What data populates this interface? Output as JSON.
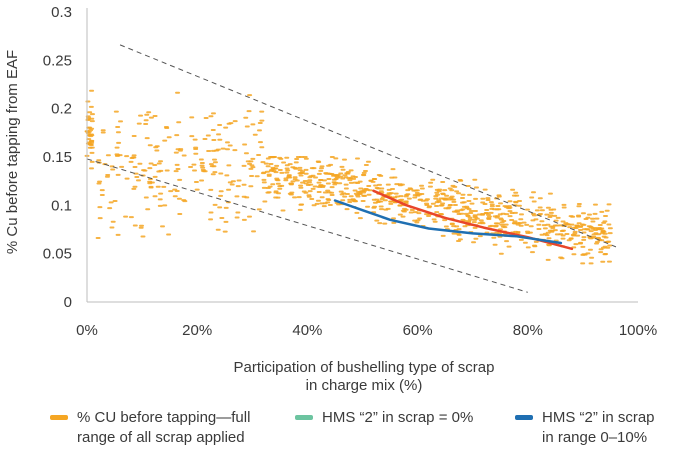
{
  "chart_data": {
    "type": "scatter",
    "title": "",
    "xlabel": "Participation of bushelling type of scrap",
    "xlabel_line2": "in charge mix (%)",
    "ylabel": "% Cu before tapping from EAF",
    "xlim": [
      0,
      100
    ],
    "ylim": [
      0,
      0.3
    ],
    "x_ticks": [
      0,
      20,
      40,
      60,
      80,
      100
    ],
    "x_tick_labels": [
      "0%",
      "20%",
      "40%",
      "60%",
      "80%",
      "100%"
    ],
    "y_ticks": [
      0,
      0.05,
      0.1,
      0.15,
      0.2,
      0.25,
      0.3
    ],
    "y_tick_labels": [
      "0",
      "0.05",
      "0.1",
      "0.15",
      "0.2",
      "0.25",
      "0.3"
    ],
    "grid": false,
    "legend_position": "bottom",
    "series": [
      {
        "name": "% CU before tapping—full range of all scrap applied",
        "kind": "scatter",
        "color": "#f5a623",
        "clusters": [
          {
            "x_range": [
              0,
              1
            ],
            "y_range": [
              0.12,
              0.23
            ],
            "count": 40
          },
          {
            "x_range": [
              2,
              32
            ],
            "y_range": [
              0.06,
              0.22
            ],
            "count": 230
          },
          {
            "x_range": [
              32,
              95
            ],
            "y_range": [
              0.04,
              0.15
            ],
            "count": 800
          }
        ]
      },
      {
        "name": "HMS “2” in scrap = 0%",
        "kind": "line",
        "color": "#e8452a",
        "legend_color": "#6cc4a0",
        "points": [
          [
            52,
            0.115
          ],
          [
            58,
            0.1
          ],
          [
            65,
            0.087
          ],
          [
            72,
            0.077
          ],
          [
            80,
            0.067
          ],
          [
            88,
            0.055
          ]
        ]
      },
      {
        "name": "HMS “2” in scrap in range 0–10%",
        "kind": "line",
        "color": "#1f6fb2",
        "points": [
          [
            45,
            0.105
          ],
          [
            50,
            0.095
          ],
          [
            55,
            0.085
          ],
          [
            62,
            0.076
          ],
          [
            70,
            0.071
          ],
          [
            78,
            0.068
          ],
          [
            86,
            0.061
          ]
        ]
      },
      {
        "name": "",
        "kind": "dashed",
        "color": "#555555",
        "points": [
          [
            6,
            0.266
          ],
          [
            96,
            0.057
          ]
        ]
      },
      {
        "name": "",
        "kind": "dashed",
        "color": "#555555",
        "points": [
          [
            0,
            0.148
          ],
          [
            80,
            0.01
          ]
        ]
      }
    ]
  },
  "legend": [
    {
      "line1": "% CU before tapping—full",
      "line2": "range of all scrap applied",
      "color": "#f5a623"
    },
    {
      "line1": "HMS “2” in scrap = 0%",
      "line2": "",
      "color": "#6cc4a0"
    },
    {
      "line1": "HMS “2” in scrap",
      "line2": "in range 0–10%",
      "color": "#1f6fb2"
    }
  ]
}
